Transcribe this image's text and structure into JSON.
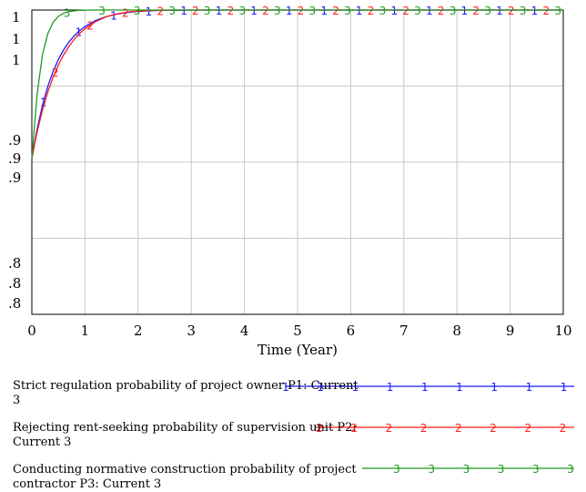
{
  "chart_data": {
    "type": "line",
    "title": "",
    "xlabel": "Time (Year)",
    "ylabel": "",
    "xlim": [
      0,
      10
    ],
    "x_ticks": [
      0,
      1,
      2,
      3,
      4,
      5,
      6,
      7,
      8,
      9,
      10
    ],
    "x_tick_labels": [
      "0",
      "1",
      "2",
      "3",
      "4",
      "5",
      "6",
      "7",
      "8",
      "9",
      "10"
    ],
    "y_tick_labels": [
      "1",
      "1",
      "1",
      ".9",
      ".9",
      ".9",
      ".8",
      ".8",
      ".8"
    ],
    "grid": true,
    "legend_position": "bottom",
    "series": [
      {
        "name": "Strict regulation probability of project owner P1: Current 3",
        "marker": "1",
        "color": "#1a1aff",
        "x": [
          0,
          0.1,
          0.2,
          0.3,
          0.4,
          0.5,
          0.6,
          0.7,
          0.8,
          0.9,
          1.0,
          1.2,
          1.4,
          1.6,
          1.8,
          2.0,
          2.25,
          2.5,
          2.75,
          3.0,
          3.5,
          4.0,
          5.0,
          6.0,
          7.0,
          8.0,
          9.0,
          10.0
        ],
        "y": [
          0.9,
          0.9188,
          0.9339,
          0.946,
          0.9557,
          0.9634,
          0.9696,
          0.9746,
          0.9786,
          0.9818,
          0.9844,
          0.9883,
          0.9908,
          0.9924,
          0.9934,
          0.9941,
          0.9946,
          0.9948,
          0.9949,
          0.995,
          0.995,
          0.995,
          0.995,
          0.995,
          0.995,
          0.995,
          0.995,
          0.995
        ]
      },
      {
        "name": "Rejecting rent-seeking probability of supervision unit P2: Current 3",
        "marker": "2",
        "color": "#ff1a1a",
        "x": [
          0,
          0.1,
          0.2,
          0.3,
          0.4,
          0.5,
          0.6,
          0.7,
          0.8,
          0.9,
          1.0,
          1.2,
          1.4,
          1.6,
          1.8,
          2.0,
          2.25,
          2.5,
          2.75,
          3.0,
          3.5,
          4.0,
          5.0,
          6.0,
          7.0,
          8.0,
          9.0,
          10.0
        ],
        "y": [
          0.9,
          0.9169,
          0.9309,
          0.9424,
          0.952,
          0.9599,
          0.9664,
          0.9718,
          0.9763,
          0.98,
          0.983,
          0.9876,
          0.9907,
          0.9925,
          0.9937,
          0.9943,
          0.9947,
          0.9949,
          0.995,
          0.995,
          0.995,
          0.995,
          0.995,
          0.995,
          0.995,
          0.995,
          0.995,
          0.995
        ]
      },
      {
        "name": "Conducting normative construction probability of project contractor P3: Current 3",
        "marker": "3",
        "color": "#1f9a1f",
        "x": [
          0,
          0.1,
          0.2,
          0.3,
          0.4,
          0.5,
          0.6,
          0.7,
          0.8,
          0.9,
          1.0,
          1.2,
          1.4,
          1.6,
          1.8,
          2.0,
          2.25,
          2.5,
          2.75,
          3.0,
          3.5,
          4.0,
          5.0,
          6.0,
          7.0,
          8.0,
          9.0,
          10.0
        ],
        "y": [
          0.9,
          0.9413,
          0.9664,
          0.9798,
          0.9871,
          0.991,
          0.993,
          0.994,
          0.9945,
          0.9948,
          0.9949,
          0.995,
          0.995,
          0.995,
          0.995,
          0.995,
          0.995,
          0.995,
          0.995,
          0.995,
          0.995,
          0.995,
          0.995,
          0.995,
          0.995,
          0.995,
          0.995,
          0.995
        ]
      }
    ]
  }
}
